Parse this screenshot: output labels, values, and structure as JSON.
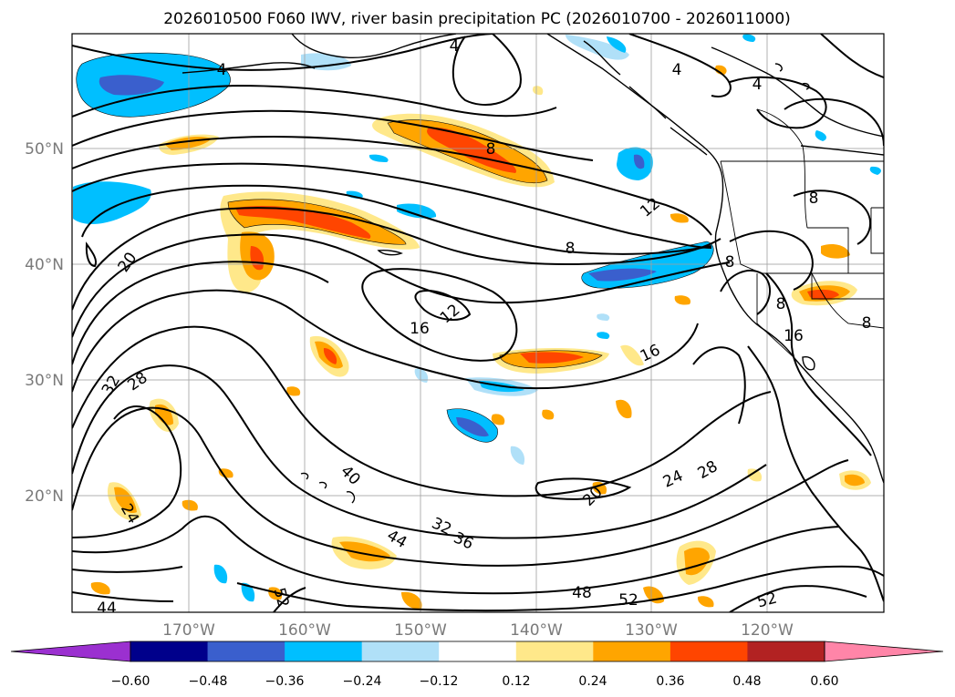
{
  "title": "2026010500 F060 IWV, river basin precipitation PC (2026010700 - 2026011000)",
  "lon_labels": [
    "170°W",
    "160°W",
    "150°W",
    "140°W",
    "130°W",
    "120°W"
  ],
  "lat_labels": [
    "50°N",
    "40°N",
    "30°N",
    "20°N"
  ],
  "colorbar": {
    "ticks": [
      "−0.60",
      "−0.48",
      "−0.36",
      "−0.24",
      "−0.12",
      "0.12",
      "0.24",
      "0.36",
      "0.48",
      "0.60"
    ],
    "colors": [
      "#9b30d0",
      "#00008b",
      "#3a5fcd",
      "#00bfff",
      "#b0e0f8",
      "#ffffff",
      "#ffe88a",
      "#ffa500",
      "#ff4500",
      "#b22222",
      "#ff85a8"
    ]
  },
  "contour_labels": [
    "4",
    "4",
    "4",
    "4",
    "8",
    "8",
    "8",
    "8",
    "8",
    "8",
    "12",
    "12",
    "16",
    "16",
    "16",
    "20",
    "20",
    "24",
    "28",
    "32",
    "24",
    "28",
    "32",
    "36",
    "40",
    "44",
    "44",
    "48",
    "52",
    "52",
    "52"
  ],
  "chart_data": {
    "type": "map",
    "variable": "IWV",
    "shading": "river basin precipitation PC",
    "contour_levels": [
      4,
      8,
      12,
      16,
      20,
      24,
      28,
      32,
      36,
      40,
      44,
      48,
      52
    ],
    "lon_range": [
      "175°W",
      "105°W"
    ],
    "lat_range": [
      "10°N",
      "60°N"
    ],
    "colorbar_levels": [
      -0.6,
      -0.48,
      -0.36,
      -0.24,
      -0.12,
      0.12,
      0.24,
      0.36,
      0.48,
      0.6
    ]
  }
}
